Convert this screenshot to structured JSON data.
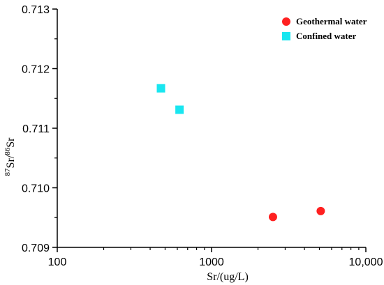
{
  "chart_data": {
    "type": "scatter",
    "xscale": "log",
    "xlim": [
      100,
      10000
    ],
    "ylim": [
      0.709,
      0.713
    ],
    "xticks": [
      100,
      1000,
      10000
    ],
    "xtick_labels": [
      "100",
      "1000",
      "10,000"
    ],
    "yticks": [
      0.709,
      0.71,
      0.711,
      0.712,
      0.713
    ],
    "ytick_labels": [
      "0.709",
      "0.710",
      "0.711",
      "0.712",
      "0.713"
    ],
    "xlabel": "Sr/(ug/L)",
    "ylabel": {
      "sup1": "87",
      "base1": "Sr/",
      "sup2": "86",
      "base2": "Sr"
    },
    "legend_position": "top-right",
    "grid": false,
    "series": [
      {
        "name": "Geothermal water",
        "marker": "circle",
        "color": "#ff2020",
        "points": [
          {
            "x": 2500,
            "y": 0.70951
          },
          {
            "x": 5100,
            "y": 0.70961
          }
        ]
      },
      {
        "name": "Confined water",
        "marker": "square",
        "color": "#19e6f0",
        "points": [
          {
            "x": 470,
            "y": 0.71167
          },
          {
            "x": 620,
            "y": 0.71131
          }
        ]
      }
    ]
  }
}
